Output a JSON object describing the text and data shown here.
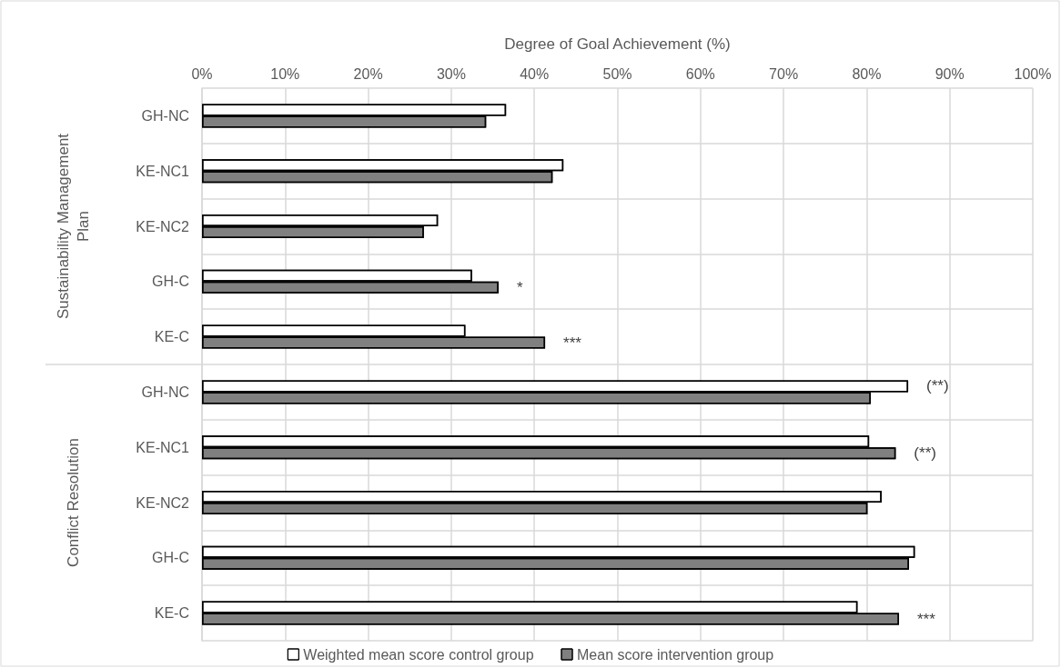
{
  "chart_data": {
    "type": "bar",
    "orientation": "horizontal",
    "xlabel": "Degree of Goal Achievement (%)",
    "categories": [
      "GH-NC",
      "KE-NC1",
      "KE-NC2",
      "GH-C",
      "KE-C",
      "GH-NC",
      "KE-NC1",
      "KE-NC2",
      "GH-C",
      "KE-C"
    ],
    "series": [
      {
        "name": "Weighted mean score control group",
        "color": "#ffffff",
        "values": [
          36.6,
          43.5,
          28.4,
          32.5,
          31.7,
          85.0,
          80.3,
          81.8,
          85.8,
          78.9
        ],
        "value_labels": [
          null,
          null,
          null,
          null,
          null,
          "(**)",
          null,
          null,
          null,
          null
        ]
      },
      {
        "name": "Mean score intervention group",
        "color": "#808080",
        "values": [
          34.2,
          42.2,
          26.7,
          35.7,
          41.3,
          80.5,
          83.5,
          80.1,
          85.1,
          83.9
        ],
        "value_labels": [
          null,
          null,
          null,
          "*",
          "***",
          null,
          "(**)",
          null,
          null,
          "***"
        ]
      }
    ],
    "xlim": [
      0,
      100
    ],
    "xticks": [
      {
        "value": 0,
        "label": "0%"
      },
      {
        "value": 10,
        "label": "10%"
      },
      {
        "value": 20,
        "label": "20%"
      },
      {
        "value": 30,
        "label": "30%"
      },
      {
        "value": 40,
        "label": "40%"
      },
      {
        "value": 50,
        "label": "50%"
      },
      {
        "value": 60,
        "label": "60%"
      },
      {
        "value": 70,
        "label": "70%"
      },
      {
        "value": 80,
        "label": "80%"
      },
      {
        "value": 90,
        "label": "90%"
      },
      {
        "value": 100,
        "label": "100%"
      }
    ],
    "annotations": [
      "Sustainability Management\nPlan",
      "Conflict Resolution"
    ],
    "grid": true,
    "legend": "bottom"
  }
}
